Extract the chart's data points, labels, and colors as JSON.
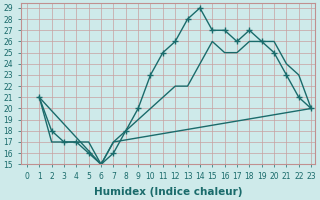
{
  "xlabel": "Humidex (Indice chaleur)",
  "bg_color": "#ceeaea",
  "line_color": "#1a6b6b",
  "grid_color": "#b8d8d8",
  "xlim": [
    -0.5,
    23.3
  ],
  "ylim": [
    15,
    29.4
  ],
  "xticks": [
    0,
    1,
    2,
    3,
    4,
    5,
    6,
    7,
    8,
    9,
    10,
    11,
    12,
    13,
    14,
    15,
    16,
    17,
    18,
    19,
    20,
    21,
    22,
    23
  ],
  "yticks": [
    15,
    16,
    17,
    18,
    19,
    20,
    21,
    22,
    23,
    24,
    25,
    26,
    27,
    28,
    29
  ],
  "line1_x": [
    1,
    2,
    3,
    4,
    5,
    6,
    7,
    8,
    9,
    10,
    11,
    12,
    13,
    14,
    15,
    16,
    17,
    18,
    19,
    20,
    21,
    22,
    23
  ],
  "line1_y": [
    21,
    18,
    17,
    17,
    16,
    15,
    16,
    18,
    20,
    23,
    25,
    26,
    28,
    29,
    27,
    27,
    26,
    27,
    26,
    25,
    23,
    21,
    20
  ],
  "line2_x": [
    1,
    2,
    3,
    4,
    5,
    6,
    7,
    23
  ],
  "line2_y": [
    21,
    17,
    17,
    17,
    17,
    15,
    17,
    20
  ],
  "line3_x": [
    1,
    6,
    7,
    8,
    9,
    10,
    11,
    12,
    13,
    14,
    15,
    16,
    17,
    18,
    19,
    20,
    21,
    22,
    23
  ],
  "line3_y": [
    21,
    15,
    17,
    18,
    19,
    20,
    21,
    22,
    22,
    24,
    26,
    25,
    25,
    26,
    26,
    26,
    24,
    23,
    20
  ],
  "marker": "+",
  "markersize": 4,
  "linewidth": 1.0,
  "tick_fontsize": 5.5,
  "xlabel_fontsize": 7.5
}
